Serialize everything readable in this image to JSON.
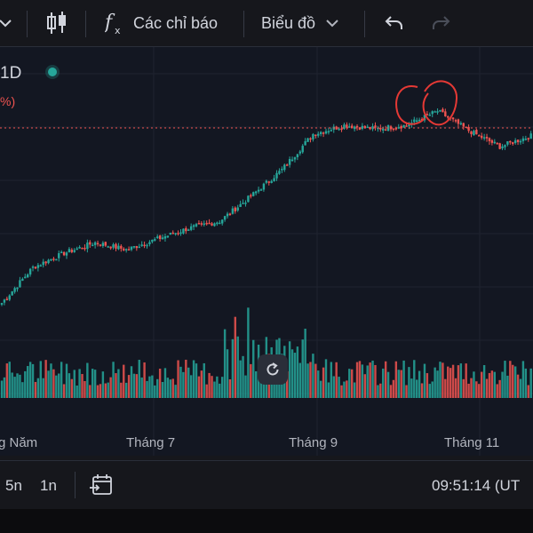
{
  "toolbar": {
    "indicators_label": "Các chỉ báo",
    "chart_type_label": "Biểu đồ"
  },
  "legend": {
    "interval": "1D",
    "change_suffix": "%)"
  },
  "time_axis": {
    "labels": [
      "g Năm",
      "Tháng 7",
      "Tháng 9",
      "Tháng 11"
    ]
  },
  "bottom_bar": {
    "ranges": [
      "5n",
      "1n"
    ],
    "clock": "09:51:14 (UT"
  },
  "colors": {
    "up": "#26a69a",
    "down": "#ef5350",
    "annotation": "#e53935",
    "background": "#131722"
  },
  "chart_data": {
    "type": "candlestick",
    "x": "daily sessions, from the start of Năm (Jan) to beyond Tháng 11",
    "price_trend_keypoints": [
      0.0,
      0.2,
      0.28,
      0.34,
      0.3,
      0.36,
      0.42,
      0.46,
      0.6,
      0.75,
      0.95,
      1.0,
      0.98,
      1.0,
      1.08,
      0.97,
      0.88,
      0.94
    ],
    "last_price_line": "dotted horizontal line at the latest close",
    "volume": "histogram of daily volume, colored by candle direction",
    "annotations": [
      "hand-drawn red circle around the recent peak candles"
    ]
  }
}
